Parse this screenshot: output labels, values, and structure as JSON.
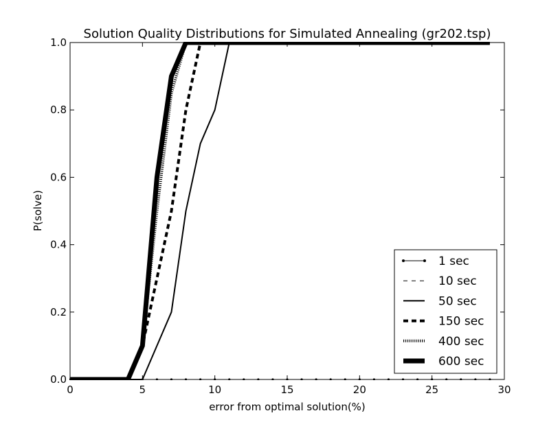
{
  "chart_data": {
    "type": "line",
    "title": "Solution Quality Distributions for Simulated Annealing (gr202.tsp)",
    "xlabel": "error from optimal solution(%)",
    "ylabel": "P(solve)",
    "xlim": [
      0,
      30
    ],
    "ylim": [
      0,
      1.0
    ],
    "xticks": [
      0,
      5,
      10,
      15,
      20,
      25,
      30
    ],
    "yticks": [
      0.0,
      0.2,
      0.4,
      0.6,
      0.8,
      1.0
    ],
    "xtick_labels": [
      "0",
      "5",
      "10",
      "15",
      "20",
      "25",
      "30"
    ],
    "ytick_labels": [
      "0.0",
      "0.2",
      "0.4",
      "0.6",
      "0.8",
      "1.0"
    ],
    "grid": false,
    "legend_position": "lower-right",
    "series": [
      {
        "name": "1 sec",
        "style": "solid-thin-dots",
        "x": [
          0,
          1,
          2,
          3,
          4,
          5,
          6,
          7,
          8,
          9,
          10,
          11,
          12,
          13,
          14,
          15,
          16,
          17,
          18,
          19,
          20,
          21,
          22,
          23,
          24,
          25,
          26,
          27,
          28,
          29
        ],
        "y": [
          0,
          0,
          0,
          0,
          0,
          0,
          0,
          0,
          0,
          0,
          0,
          0,
          0,
          0,
          0,
          0,
          0,
          0,
          0,
          0,
          0,
          0,
          0,
          0,
          0,
          0,
          0,
          0,
          0,
          0
        ]
      },
      {
        "name": "10 sec",
        "style": "dashed-thin",
        "x": [
          0,
          1,
          2,
          3,
          4,
          5,
          6,
          7,
          8,
          9,
          10,
          11,
          12,
          13,
          14,
          15,
          16,
          17,
          18,
          19,
          20,
          21,
          22,
          23,
          24,
          25,
          26,
          27,
          28,
          29
        ],
        "y": [
          0,
          0,
          0,
          0,
          0,
          0,
          0,
          0,
          0,
          0,
          0,
          0,
          0,
          0,
          0,
          0,
          0,
          0,
          0,
          0,
          0,
          0,
          0,
          0,
          0,
          0,
          0,
          0,
          0,
          0
        ]
      },
      {
        "name": "50 sec",
        "style": "solid",
        "x": [
          0,
          1,
          2,
          3,
          4,
          5,
          6,
          7,
          8,
          9,
          10,
          11,
          12,
          13,
          14,
          15,
          16,
          17,
          18,
          19,
          20,
          21,
          22,
          23,
          24,
          25,
          26,
          27,
          28,
          29
        ],
        "y": [
          0,
          0,
          0,
          0,
          0,
          0,
          0.1,
          0.2,
          0.5,
          0.7,
          0.8,
          1.0,
          1.0,
          1.0,
          1.0,
          1.0,
          1.0,
          1.0,
          1.0,
          1.0,
          1.0,
          1.0,
          1.0,
          1.0,
          1.0,
          1.0,
          1.0,
          1.0,
          1.0,
          1.0
        ]
      },
      {
        "name": "150 sec",
        "style": "dashed-thick",
        "x": [
          0,
          1,
          2,
          3,
          4,
          5,
          6,
          7,
          8,
          9,
          10,
          11,
          12,
          13,
          14,
          15,
          16,
          17,
          18,
          19,
          20,
          21,
          22,
          23,
          24,
          25,
          26,
          27,
          28,
          29
        ],
        "y": [
          0,
          0,
          0,
          0,
          0,
          0.1,
          0.3,
          0.5,
          0.8,
          1.0,
          1.0,
          1.0,
          1.0,
          1.0,
          1.0,
          1.0,
          1.0,
          1.0,
          1.0,
          1.0,
          1.0,
          1.0,
          1.0,
          1.0,
          1.0,
          1.0,
          1.0,
          1.0,
          1.0,
          1.0
        ]
      },
      {
        "name": "400 sec",
        "style": "dotted-thick",
        "x": [
          0,
          1,
          2,
          3,
          4,
          5,
          6,
          7,
          8,
          9,
          10,
          11,
          12,
          13,
          14,
          15,
          16,
          17,
          18,
          19,
          20,
          21,
          22,
          23,
          24,
          25,
          26,
          27,
          28,
          29
        ],
        "y": [
          0,
          0,
          0,
          0,
          0,
          0.1,
          0.5,
          0.85,
          1.0,
          1.0,
          1.0,
          1.0,
          1.0,
          1.0,
          1.0,
          1.0,
          1.0,
          1.0,
          1.0,
          1.0,
          1.0,
          1.0,
          1.0,
          1.0,
          1.0,
          1.0,
          1.0,
          1.0,
          1.0,
          1.0
        ]
      },
      {
        "name": "600 sec",
        "style": "solid-heavy",
        "x": [
          0,
          1,
          2,
          3,
          4,
          5,
          6,
          7,
          8,
          9,
          10,
          11,
          12,
          13,
          14,
          15,
          16,
          17,
          18,
          19,
          20,
          21,
          22,
          23,
          24,
          25,
          26,
          27,
          28,
          29
        ],
        "y": [
          0,
          0,
          0,
          0,
          0,
          0.1,
          0.6,
          0.9,
          1.0,
          1.0,
          1.0,
          1.0,
          1.0,
          1.0,
          1.0,
          1.0,
          1.0,
          1.0,
          1.0,
          1.0,
          1.0,
          1.0,
          1.0,
          1.0,
          1.0,
          1.0,
          1.0,
          1.0,
          1.0,
          1.0
        ]
      }
    ]
  }
}
